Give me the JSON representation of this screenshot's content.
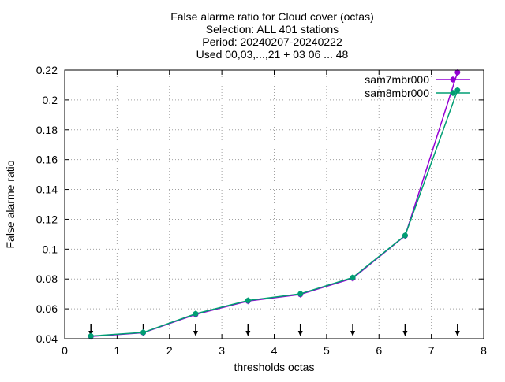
{
  "chart_data": {
    "type": "line",
    "title_lines": [
      "False alarme ratio  for Cloud cover (octas)",
      "Selection: ALL    401 stations",
      "Period: 20240207-20240222",
      "Used 00,03,...,21 + 03 06 ... 48"
    ],
    "xlabel": "thresholds octas",
    "ylabel": "False alarme ratio",
    "xlim": [
      0,
      8
    ],
    "ylim": [
      0.04,
      0.22
    ],
    "xticks": [
      "0",
      "1",
      "2",
      "3",
      "4",
      "5",
      "6",
      "7",
      "8"
    ],
    "yticks": [
      "0.04",
      "0.06",
      "0.08",
      "0.1",
      "0.12",
      "0.14",
      "0.16",
      "0.18",
      "0.2",
      "0.22"
    ],
    "grid": true,
    "legend_position": "top-right",
    "x": [
      0.5,
      1.5,
      2.5,
      3.5,
      4.5,
      5.5,
      6.5,
      7.5
    ],
    "series": [
      {
        "name": "sam7mbr000",
        "color": "#9400d3",
        "values": [
          0.0415,
          0.044,
          0.0563,
          0.0652,
          0.0697,
          0.0805,
          0.109,
          0.2185
        ]
      },
      {
        "name": "sam8mbr000",
        "color": "#009e73",
        "values": [
          0.0418,
          0.0442,
          0.0567,
          0.0656,
          0.0701,
          0.081,
          0.1092,
          0.2065
        ]
      }
    ],
    "arrow_markers_x": [
      0.5,
      1.5,
      2.5,
      3.5,
      4.5,
      5.5,
      6.5,
      7.5
    ]
  }
}
